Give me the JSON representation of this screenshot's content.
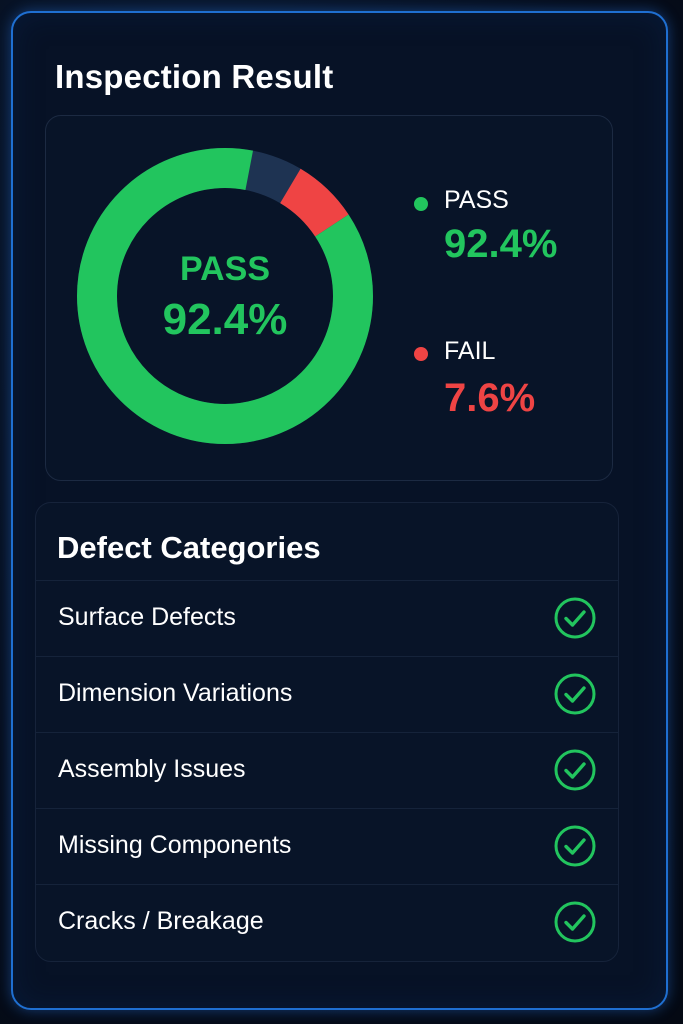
{
  "title": "Inspection Result",
  "colors": {
    "pass": "#22c55e",
    "fail": "#ef4444",
    "track": "#1e3352",
    "panel_border": "#1f6fd1"
  },
  "summary": {
    "center_label": "PASS",
    "center_value": "92.4%",
    "legend": [
      {
        "label": "PASS",
        "value": "92.4%",
        "color": "#22c55e"
      },
      {
        "label": "FAIL",
        "value": "7.6%",
        "color": "#ef4444"
      }
    ]
  },
  "chart_data": {
    "type": "pie",
    "categories": [
      "PASS",
      "FAIL"
    ],
    "values": [
      92.4,
      7.6
    ]
  },
  "defects": {
    "title": "Defect Categories",
    "items": [
      {
        "label": "Surface Defects",
        "icon": "check-circle-icon"
      },
      {
        "label": "Dimension Variations",
        "icon": "check-circle-icon"
      },
      {
        "label": "Assembly Issues",
        "icon": "check-circle-icon"
      },
      {
        "label": "Missing Components",
        "icon": "check-circle-icon"
      },
      {
        "label": "Cracks / Breakage",
        "icon": "check-circle-icon"
      }
    ]
  }
}
